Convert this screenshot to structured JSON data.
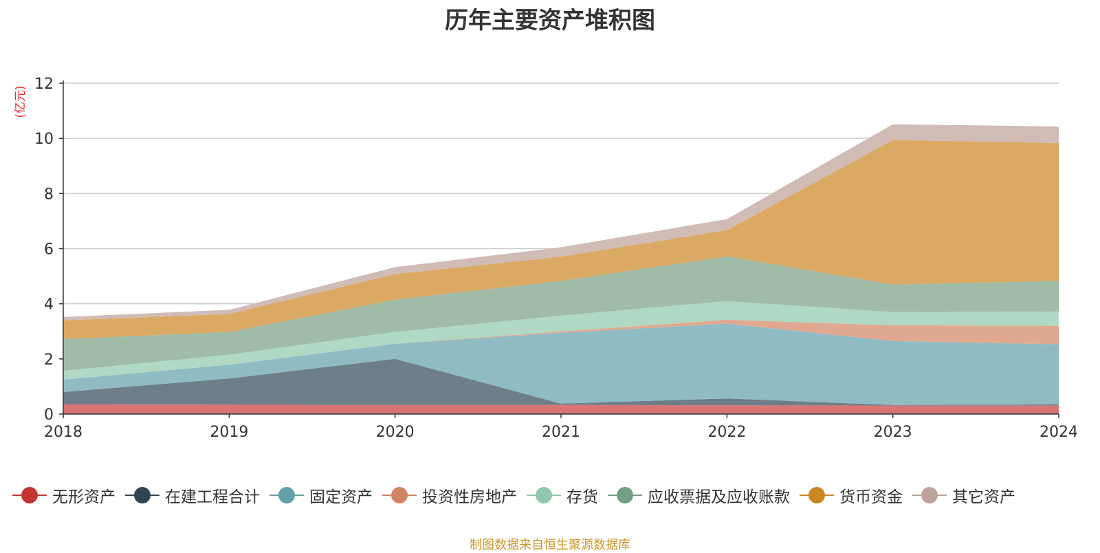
{
  "chart_data": {
    "type": "area",
    "stacked": true,
    "title": "历年主要资产堆积图",
    "y_unit_label": "(亿元)",
    "x": [
      "2018",
      "2019",
      "2020",
      "2021",
      "2022",
      "2023",
      "2024"
    ],
    "ylim": [
      0,
      12
    ],
    "yticks": [
      "0",
      "2",
      "4",
      "6",
      "8",
      "10",
      "12"
    ],
    "grid": true,
    "legend_position": "bottom",
    "series": [
      {
        "name": "无形资产",
        "color": "#c23531",
        "area_color": "#d87474",
        "values": [
          0.35,
          0.34,
          0.33,
          0.33,
          0.32,
          0.31,
          0.31
        ]
      },
      {
        "name": "在建工程合计",
        "color": "#2f4554",
        "area_color": "#6e7e88",
        "values": [
          0.45,
          0.95,
          1.67,
          0.05,
          0.25,
          0.02,
          0.04
        ]
      },
      {
        "name": "固定资产",
        "color": "#61a0a8",
        "area_color": "#90bbc2",
        "values": [
          0.45,
          0.5,
          0.55,
          2.57,
          2.71,
          2.32,
          2.18
        ]
      },
      {
        "name": "投资性房地产",
        "color": "#d48265",
        "area_color": "#e0a890",
        "values": [
          0.0,
          0.0,
          0.0,
          0.05,
          0.14,
          0.57,
          0.67
        ]
      },
      {
        "name": "存货",
        "color": "#91c7ae",
        "area_color": "#b0d8c5",
        "values": [
          0.32,
          0.36,
          0.43,
          0.57,
          0.68,
          0.48,
          0.52
        ]
      },
      {
        "name": "应收票据及应收账款",
        "color": "#749f83",
        "area_color": "#a0bca8",
        "values": [
          1.15,
          0.83,
          1.17,
          1.26,
          1.62,
          1.0,
          1.11
        ]
      },
      {
        "name": "货币资金",
        "color": "#ca8622",
        "area_color": "#dba963",
        "values": [
          0.68,
          0.65,
          0.93,
          0.88,
          0.95,
          5.24,
          5.0
        ]
      },
      {
        "name": "其它资产",
        "color": "#bda29a",
        "area_color": "#d0bbb5",
        "values": [
          0.12,
          0.15,
          0.25,
          0.34,
          0.4,
          0.57,
          0.6
        ]
      }
    ]
  },
  "source_note": "制图数据来自恒生聚源数据库"
}
